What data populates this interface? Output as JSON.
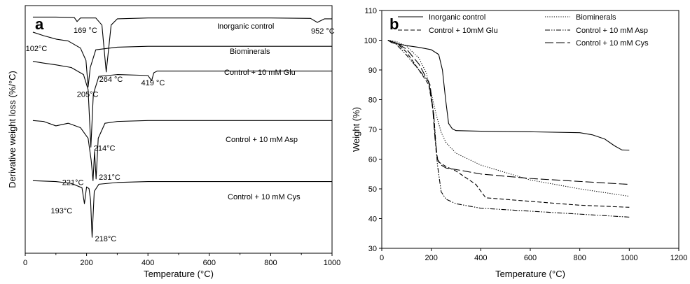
{
  "chart_data": [
    {
      "type": "line",
      "panel": "a",
      "xlabel": "Temperature (°C)",
      "ylabel": "Derivative weight loss (%/°C)",
      "xlim": [
        0,
        1000
      ],
      "xticks": [
        0,
        200,
        400,
        600,
        800,
        1000
      ],
      "y_tick_labels_shown": false,
      "grid": false,
      "legend": "none",
      "series": [
        {
          "name": "Inorganic control",
          "x": [
            25,
            100,
            160,
            169,
            180,
            230,
            250,
            264,
            280,
            300,
            400,
            600,
            800,
            930,
            952,
            975,
            1000
          ],
          "y": [
            1.7,
            1.7,
            1.65,
            1.2,
            1.6,
            1.6,
            0.8,
            -4.5,
            0.8,
            1.5,
            1.6,
            1.6,
            1.6,
            1.55,
            1.1,
            1.5,
            1.5
          ]
        },
        {
          "name": "Biominerals",
          "x": [
            25,
            60,
            102,
            140,
            180,
            198,
            205,
            212,
            230,
            300,
            400,
            600,
            800,
            1000
          ],
          "y": [
            0.0,
            -0.4,
            -0.8,
            -1.0,
            -1.8,
            -3.2,
            -6.2,
            -4.0,
            -2.0,
            -1.7,
            -1.6,
            -1.6,
            -1.6,
            -1.6
          ]
        },
        {
          "name": "Control + 10 mM Glu",
          "x": [
            25,
            60,
            100,
            150,
            190,
            205,
            214,
            222,
            240,
            300,
            400,
            412,
            419,
            430,
            500,
            600,
            800,
            1000
          ],
          "y": [
            -3.3,
            -3.5,
            -3.7,
            -4.0,
            -4.8,
            -6.5,
            -13.0,
            -7.0,
            -5.0,
            -4.8,
            -4.9,
            -5.5,
            -4.6,
            -4.4,
            -4.4,
            -4.4,
            -4.4,
            -4.4
          ]
        },
        {
          "name": "Control + 10 mM Asp",
          "x": [
            25,
            60,
            100,
            140,
            180,
            205,
            215,
            221,
            226,
            231,
            238,
            260,
            300,
            400,
            600,
            800,
            1000
          ],
          "y": [
            -10.0,
            -10.1,
            -10.6,
            -10.3,
            -10.8,
            -12.0,
            -14.5,
            -16.8,
            -13.5,
            -16.6,
            -12.0,
            -10.3,
            -10.1,
            -10.0,
            -10.0,
            -10.0,
            -10.0
          ]
        },
        {
          "name": "Control + 10 mM Cys",
          "x": [
            25,
            100,
            150,
            185,
            193,
            200,
            208,
            213,
            218,
            225,
            240,
            300,
            400,
            600,
            800,
            1000
          ],
          "y": [
            -16.8,
            -16.9,
            -17.1,
            -17.6,
            -19.4,
            -17.5,
            -17.7,
            -19.0,
            -23.2,
            -18.0,
            -17.2,
            -17.0,
            -16.9,
            -16.9,
            -16.9,
            -16.9
          ]
        }
      ],
      "annotations": [
        {
          "text": "169 °C",
          "x": 169,
          "y": 1.2
        },
        {
          "text": "952 °C",
          "x": 952,
          "y": 1.1
        },
        {
          "text": "264 °C",
          "x": 264,
          "y": -4.5
        },
        {
          "text": "102°C",
          "x": 102,
          "y": -0.8
        },
        {
          "text": "205°C",
          "x": 205,
          "y": -6.2
        },
        {
          "text": "419 °C",
          "x": 419,
          "y": -4.6
        },
        {
          "text": "214°C",
          "x": 214,
          "y": -13.0
        },
        {
          "text": "221°C",
          "x": 221,
          "y": -16.8
        },
        {
          "text": "231°C",
          "x": 231,
          "y": -16.6
        },
        {
          "text": "193°C",
          "x": 193,
          "y": -19.4
        },
        {
          "text": "218°C",
          "x": 218,
          "y": -23.2
        }
      ]
    },
    {
      "type": "line",
      "panel": "b",
      "xlabel": "Temperature (°C)",
      "ylabel": "Weight (%)",
      "xlim": [
        0,
        1200
      ],
      "ylim": [
        30,
        110
      ],
      "xticks": [
        0,
        200,
        400,
        600,
        800,
        1000,
        1200
      ],
      "yticks": [
        30,
        40,
        50,
        60,
        70,
        80,
        90,
        100,
        110
      ],
      "grid": false,
      "legend": "top",
      "series": [
        {
          "name": "Inorganic control",
          "style": "solid",
          "x": [
            25,
            40,
            100,
            150,
            200,
            230,
            245,
            258,
            270,
            285,
            300,
            400,
            600,
            800,
            850,
            900,
            940,
            970,
            1000
          ],
          "y": [
            100,
            99.2,
            98.2,
            97.6,
            96.8,
            95.2,
            90.0,
            80.0,
            72.0,
            70.2,
            69.6,
            69.4,
            69.2,
            68.9,
            68.2,
            66.8,
            64.5,
            63.1,
            63.0
          ]
        },
        {
          "name": "Biominerals",
          "style": "dotted",
          "x": [
            25,
            60,
            100,
            150,
            180,
            200,
            220,
            240,
            260,
            300,
            400,
            600,
            800,
            1000
          ],
          "y": [
            100,
            99.5,
            98.0,
            94.0,
            89.0,
            82.0,
            75.0,
            69.0,
            65.5,
            62.0,
            58.0,
            53.0,
            50.0,
            47.5
          ]
        },
        {
          "name": "Control + 10mM Glu",
          "style": "dashed",
          "x": [
            25,
            60,
            100,
            150,
            190,
            210,
            220,
            230,
            260,
            300,
            380,
            420,
            450,
            600,
            800,
            1000
          ],
          "y": [
            100,
            99.0,
            96.0,
            90.0,
            85.0,
            75.0,
            62.0,
            59.0,
            57.5,
            56.0,
            51.5,
            47.0,
            46.8,
            45.8,
            44.5,
            43.8
          ]
        },
        {
          "name": "Control + 10 mM Asp",
          "style": "dash-dot-dot",
          "x": [
            25,
            60,
            100,
            150,
            190,
            210,
            225,
            240,
            260,
            300,
            400,
            600,
            800,
            1000
          ],
          "y": [
            100,
            98.5,
            95.0,
            90.0,
            86.0,
            75.0,
            58.0,
            49.0,
            46.5,
            45.0,
            43.5,
            42.5,
            41.5,
            40.5
          ]
        },
        {
          "name": "Control + 10 mM Cys",
          "style": "long-dash",
          "x": [
            25,
            60,
            100,
            150,
            195,
            205,
            215,
            225,
            240,
            260,
            300,
            400,
            600,
            800,
            1000
          ],
          "y": [
            100,
            99.0,
            97.0,
            92.0,
            85.0,
            78.0,
            67.0,
            60.0,
            58.0,
            57.0,
            56.5,
            55.0,
            53.5,
            52.5,
            51.5
          ]
        }
      ]
    }
  ]
}
